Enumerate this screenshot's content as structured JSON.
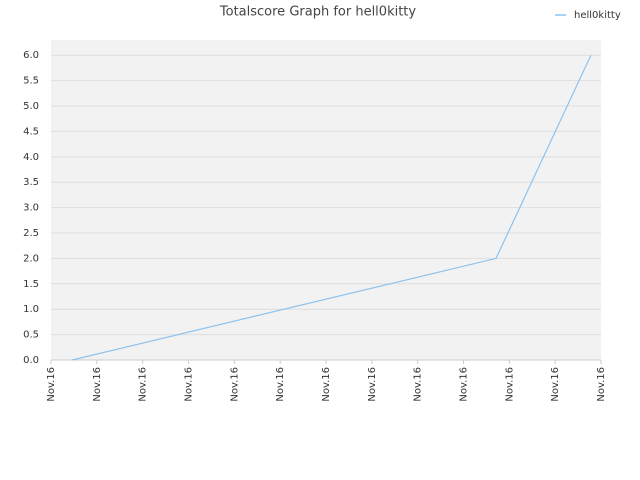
{
  "chart_data": {
    "type": "line",
    "title": "Totalscore Graph for hell0kitty",
    "x": [
      0.46,
      9.71,
      11.78
    ],
    "series": [
      {
        "name": "hell0kitty",
        "color": "#8ec3ee",
        "values": [
          0,
          2,
          6
        ]
      }
    ],
    "xlim": [
      0,
      12
    ],
    "xticks": [
      {
        "value": 0,
        "label": "Nov.16"
      },
      {
        "value": 1,
        "label": "Nov.16"
      },
      {
        "value": 2,
        "label": "Nov.16"
      },
      {
        "value": 3,
        "label": "Nov.16"
      },
      {
        "value": 4,
        "label": "Nov.16"
      },
      {
        "value": 5,
        "label": "Nov.16"
      },
      {
        "value": 6,
        "label": "Nov.16"
      },
      {
        "value": 7,
        "label": "Nov.16"
      },
      {
        "value": 8,
        "label": "Nov.16"
      },
      {
        "value": 9,
        "label": "Nov.16"
      },
      {
        "value": 10,
        "label": "Nov.16"
      },
      {
        "value": 11,
        "label": "Nov.16"
      },
      {
        "value": 12,
        "label": "Nov.16"
      }
    ],
    "ylim": [
      0,
      6.3
    ],
    "yticks": [
      {
        "value": 0,
        "label": "0.0"
      },
      0.5,
      {
        "value": 1,
        "label": "1.0"
      },
      1.5,
      {
        "value": 2,
        "label": "2.0"
      },
      2.5,
      {
        "value": 3,
        "label": "3.0"
      },
      3.5,
      {
        "value": 4,
        "label": "4.0"
      },
      4.5,
      {
        "value": 5,
        "label": "5.0"
      },
      5.5,
      {
        "value": 6,
        "label": "6.0"
      }
    ],
    "grid": true,
    "legend": "top-right"
  }
}
